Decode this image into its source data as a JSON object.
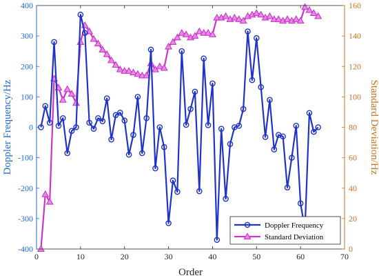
{
  "chart_data": {
    "type": "line",
    "xlabel": "Order",
    "ylabel_left": "Doppler Frequency/Hz",
    "ylabel_right": "Standard Deviation/Hz",
    "xlim": [
      0,
      70
    ],
    "ylim_left": [
      -400,
      400
    ],
    "ylim_right": [
      0,
      160
    ],
    "xticks": [
      0,
      10,
      20,
      30,
      40,
      50,
      60,
      70
    ],
    "yticks_left": [
      -400,
      -300,
      -200,
      -100,
      0,
      100,
      200,
      300,
      400
    ],
    "yticks_right": [
      0,
      20,
      40,
      60,
      80,
      100,
      120,
      140,
      160
    ],
    "legend_position": "bottom-right",
    "grid": false,
    "series": [
      {
        "name": "Doppler Frequency",
        "axis": "left",
        "color": "#1f33c8",
        "marker": "circle",
        "x": [
          1,
          2,
          3,
          4,
          5,
          6,
          7,
          8,
          9,
          10,
          11,
          12,
          13,
          14,
          15,
          16,
          17,
          18,
          19,
          20,
          21,
          22,
          23,
          24,
          25,
          26,
          27,
          28,
          29,
          30,
          31,
          32,
          33,
          34,
          35,
          36,
          37,
          38,
          39,
          40,
          41,
          42,
          43,
          44,
          45,
          46,
          47,
          48,
          49,
          50,
          51,
          52,
          53,
          54,
          55,
          56,
          57,
          58,
          59,
          60,
          61,
          62,
          63,
          64
        ],
        "y": [
          0,
          70,
          15,
          280,
          5,
          30,
          -85,
          -12,
          0,
          370,
          310,
          15,
          -5,
          30,
          20,
          95,
          -40,
          40,
          48,
          22,
          -90,
          -25,
          100,
          -85,
          30,
          255,
          -135,
          0,
          -65,
          -315,
          -175,
          -212,
          250,
          8,
          60,
          117,
          -210,
          226,
          7,
          144,
          -370,
          -5,
          -235,
          -55,
          0,
          5,
          60,
          315,
          155,
          293,
          132,
          -32,
          90,
          -73,
          -25,
          -30,
          -198,
          -100,
          5,
          -250,
          -335,
          47,
          -15,
          0
        ]
      },
      {
        "name": "Standard Deviation",
        "axis": "right",
        "color": "#cc33cc",
        "marker": "triangle",
        "x": [
          1,
          2,
          3,
          4,
          5,
          6,
          7,
          8,
          9,
          10,
          11,
          12,
          13,
          14,
          15,
          16,
          17,
          18,
          19,
          20,
          21,
          22,
          23,
          24,
          25,
          26,
          27,
          28,
          29,
          30,
          31,
          32,
          33,
          34,
          35,
          36,
          37,
          38,
          39,
          40,
          41,
          42,
          43,
          44,
          45,
          46,
          47,
          48,
          49,
          50,
          51,
          52,
          53,
          54,
          55,
          56,
          57,
          58,
          59,
          60,
          61,
          62,
          63,
          64
        ],
        "y": [
          0,
          36,
          31,
          112,
          106,
          98,
          105,
          102,
          96,
          136,
          147,
          143,
          138,
          135,
          131,
          128,
          124,
          121,
          118,
          117,
          117,
          116,
          115,
          114,
          114,
          122,
          118,
          120,
          119,
          133,
          136,
          139,
          142,
          141,
          139,
          140,
          143,
          142,
          142,
          141,
          152,
          152,
          153,
          151,
          152,
          151,
          150,
          153,
          154,
          155,
          154,
          152,
          153,
          151,
          151,
          150,
          151,
          150,
          151,
          150,
          159,
          157,
          155,
          153
        ]
      }
    ]
  }
}
